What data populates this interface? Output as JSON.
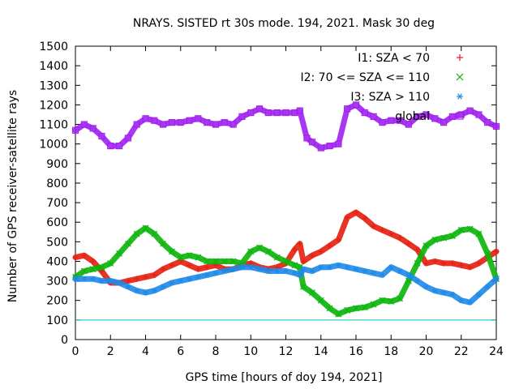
{
  "chart_data": {
    "type": "scatter",
    "title": "NRAYS. SISTED rt 30s mode. 194, 2021. Mask 30 deg",
    "xlabel": "GPS time [hours of doy 194, 2021]",
    "ylabel": "Number of GPS receiver-satellite rays",
    "xlim": [
      0,
      24
    ],
    "ylim": [
      0,
      1500
    ],
    "xticks": [
      0,
      2,
      4,
      6,
      8,
      10,
      12,
      14,
      16,
      18,
      20,
      22,
      24
    ],
    "yticks": [
      0,
      100,
      200,
      300,
      400,
      500,
      600,
      700,
      800,
      900,
      1000,
      1100,
      1200,
      1300,
      1400,
      1500
    ],
    "grid": false,
    "legend_position": "top-right",
    "reference_line": {
      "y": 100,
      "color": "#00c0c0"
    },
    "series": [
      {
        "name": "I1: SZA < 70",
        "color": "#e51e10",
        "marker": "+",
        "x": [
          0,
          0.5,
          1,
          1.5,
          2,
          2.5,
          3,
          3.5,
          4,
          4.5,
          5,
          5.5,
          6,
          6.5,
          7,
          7.5,
          8,
          8.5,
          9,
          9.5,
          10,
          10.5,
          11,
          11.5,
          12,
          12.5,
          12.8,
          13,
          13.5,
          14,
          14.5,
          15,
          15.5,
          16,
          16.5,
          17,
          17.5,
          18,
          18.5,
          19,
          19.5,
          20,
          20.5,
          21,
          21.5,
          22,
          22.5,
          23,
          23.5,
          24
        ],
        "y": [
          420,
          430,
          400,
          350,
          290,
          290,
          300,
          310,
          320,
          330,
          360,
          380,
          400,
          380,
          360,
          370,
          380,
          360,
          360,
          380,
          390,
          370,
          360,
          370,
          390,
          460,
          490,
          400,
          430,
          450,
          480,
          510,
          625,
          650,
          620,
          580,
          560,
          540,
          520,
          490,
          460,
          390,
          400,
          390,
          390,
          380,
          370,
          390,
          420,
          450
        ]
      },
      {
        "name": "I2: 70 <= SZA <= 110",
        "color": "#0ab50a",
        "marker": "x",
        "x": [
          0,
          0.5,
          1,
          1.5,
          2,
          2.5,
          3,
          3.5,
          4,
          4.5,
          5,
          5.5,
          6,
          6.5,
          7,
          7.5,
          8,
          8.5,
          9,
          9.5,
          10,
          10.5,
          11,
          11.5,
          12,
          12.5,
          12.8,
          13,
          13.5,
          14,
          14.5,
          15,
          15.5,
          16,
          16.5,
          17,
          17.5,
          18,
          18.5,
          19,
          19.5,
          20,
          20.5,
          21,
          21.5,
          22,
          22.5,
          23,
          23.5,
          24
        ],
        "y": [
          320,
          350,
          360,
          370,
          390,
          440,
          490,
          540,
          570,
          540,
          490,
          450,
          420,
          430,
          420,
          400,
          400,
          400,
          400,
          390,
          450,
          470,
          450,
          420,
          400,
          380,
          370,
          270,
          240,
          200,
          160,
          130,
          150,
          160,
          165,
          180,
          200,
          195,
          210,
          300,
          390,
          480,
          510,
          520,
          530,
          560,
          565,
          540,
          440,
          310
        ]
      },
      {
        "name": "I3: SZA > 110",
        "color": "#1e8ae8",
        "marker": "*",
        "x": [
          0,
          0.5,
          1,
          1.5,
          2,
          2.5,
          3,
          3.5,
          4,
          4.5,
          5,
          5.5,
          6,
          6.5,
          7,
          7.5,
          8,
          8.5,
          9,
          9.5,
          10,
          10.5,
          11,
          11.5,
          12,
          12.5,
          12.8,
          13,
          13.5,
          14,
          14.5,
          15,
          15.5,
          16,
          16.5,
          17,
          17.5,
          18,
          18.5,
          19,
          19.5,
          20,
          20.5,
          21,
          21.5,
          22,
          22.5,
          23,
          23.5,
          24
        ],
        "y": [
          310,
          310,
          310,
          300,
          300,
          290,
          270,
          250,
          240,
          250,
          270,
          290,
          300,
          310,
          320,
          330,
          340,
          350,
          360,
          370,
          370,
          360,
          350,
          350,
          350,
          340,
          330,
          360,
          350,
          370,
          370,
          380,
          370,
          360,
          350,
          340,
          330,
          370,
          350,
          330,
          300,
          270,
          250,
          240,
          230,
          200,
          190,
          230,
          270,
          310
        ]
      },
      {
        "name": "global",
        "color": "#a020f0",
        "marker": "square",
        "x": [
          0,
          0.5,
          1,
          1.5,
          2,
          2.5,
          3,
          3.5,
          4,
          4.5,
          5,
          5.5,
          6,
          6.5,
          7,
          7.5,
          8,
          8.5,
          9,
          9.5,
          10,
          10.5,
          11,
          11.5,
          12,
          12.5,
          12.8,
          13.2,
          13.5,
          14,
          14.5,
          15,
          15.5,
          16,
          16.5,
          17,
          17.5,
          18,
          18.5,
          19,
          19.5,
          20,
          20.5,
          21,
          21.5,
          22,
          22.5,
          23,
          23.5,
          24
        ],
        "y": [
          1070,
          1100,
          1080,
          1040,
          990,
          990,
          1030,
          1100,
          1130,
          1120,
          1100,
          1110,
          1110,
          1120,
          1130,
          1110,
          1100,
          1110,
          1100,
          1140,
          1160,
          1180,
          1160,
          1160,
          1160,
          1160,
          1170,
          1030,
          1010,
          980,
          990,
          1000,
          1180,
          1200,
          1160,
          1140,
          1110,
          1120,
          1120,
          1100,
          1140,
          1150,
          1130,
          1110,
          1140,
          1150,
          1170,
          1150,
          1110,
          1090
        ]
      }
    ]
  }
}
